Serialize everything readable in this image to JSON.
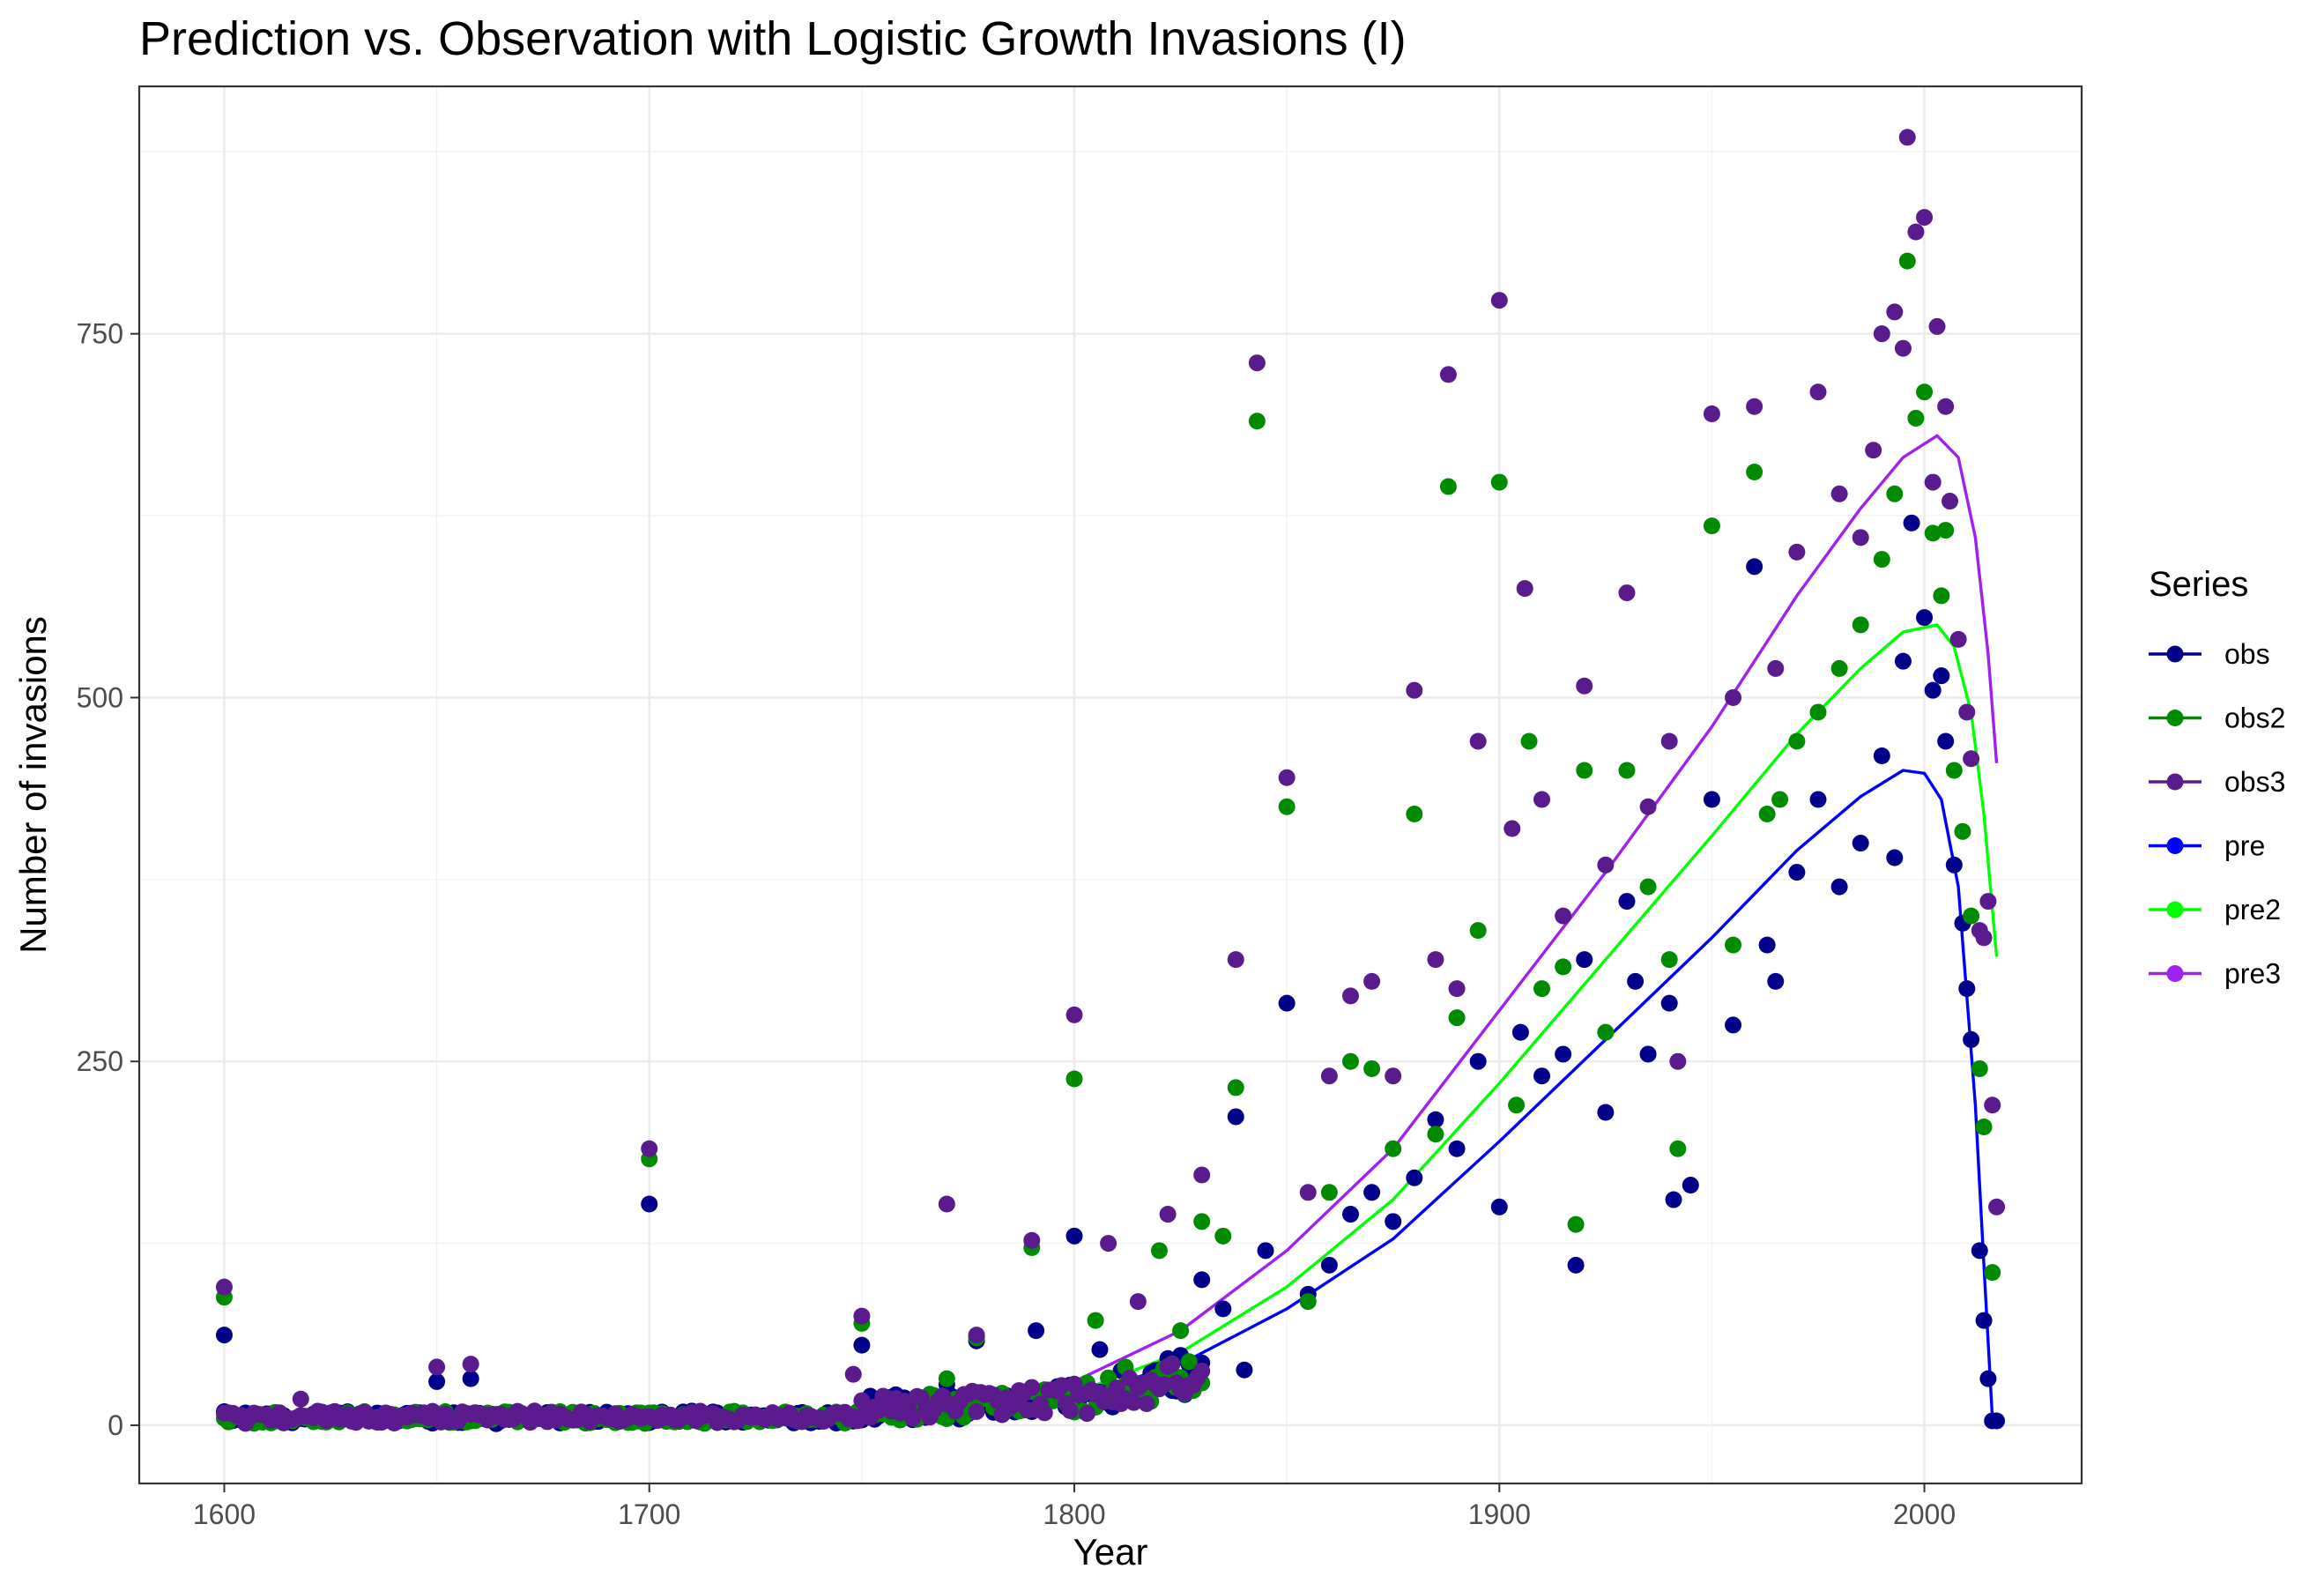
{
  "chart_data": {
    "type": "scatter",
    "title": "Prediction vs. Observation with Logistic Growth Invasions (I)",
    "xlabel": "Year",
    "ylabel": "Number of invasions",
    "xlim": [
      1580,
      2037
    ],
    "ylim": [
      -40,
      920
    ],
    "x_ticks": [
      1600,
      1700,
      1800,
      1900,
      2000
    ],
    "y_ticks": [
      0,
      250,
      500,
      750
    ],
    "x_tick_labels": [
      "1600",
      "1700",
      "1800",
      "1900",
      "2000"
    ],
    "y_tick_labels": [
      "0",
      "250",
      "500",
      "750"
    ],
    "grid": true,
    "legend_position": "right",
    "legend_title": "Series",
    "series": [
      {
        "name": "obs",
        "kind": "points",
        "color": "#00008B",
        "points": [
          [
            1600,
            62
          ],
          [
            1650,
            30
          ],
          [
            1658,
            32
          ],
          [
            1700,
            152
          ],
          [
            1750,
            55
          ],
          [
            1770,
            28
          ],
          [
            1777,
            58
          ],
          [
            1791,
            65
          ],
          [
            1800,
            130
          ],
          [
            1806,
            52
          ],
          [
            1813,
            20
          ],
          [
            1820,
            38
          ],
          [
            1825,
            48
          ],
          [
            1830,
            100
          ],
          [
            1835,
            80
          ],
          [
            1838,
            212
          ],
          [
            1840,
            38
          ],
          [
            1845,
            120
          ],
          [
            1850,
            290
          ],
          [
            1855,
            90
          ],
          [
            1860,
            110
          ],
          [
            1865,
            145
          ],
          [
            1870,
            160
          ],
          [
            1875,
            140
          ],
          [
            1880,
            170
          ],
          [
            1885,
            210
          ],
          [
            1890,
            190
          ],
          [
            1895,
            250
          ],
          [
            1900,
            150
          ],
          [
            1905,
            270
          ],
          [
            1910,
            240
          ],
          [
            1915,
            255
          ],
          [
            1918,
            110
          ],
          [
            1920,
            320
          ],
          [
            1925,
            215
          ],
          [
            1930,
            360
          ],
          [
            1932,
            305
          ],
          [
            1935,
            255
          ],
          [
            1940,
            290
          ],
          [
            1941,
            155
          ],
          [
            1945,
            165
          ],
          [
            1950,
            430
          ],
          [
            1955,
            275
          ],
          [
            1960,
            590
          ],
          [
            1963,
            330
          ],
          [
            1965,
            305
          ],
          [
            1970,
            380
          ],
          [
            1975,
            430
          ],
          [
            1980,
            370
          ],
          [
            1985,
            400
          ],
          [
            1990,
            460
          ],
          [
            1993,
            390
          ],
          [
            1995,
            525
          ],
          [
            1997,
            620
          ],
          [
            2000,
            555
          ],
          [
            2002,
            505
          ],
          [
            2004,
            515
          ],
          [
            2005,
            470
          ],
          [
            2007,
            385
          ],
          [
            2009,
            345
          ],
          [
            2010,
            300
          ],
          [
            2011,
            265
          ],
          [
            2013,
            120
          ],
          [
            2014,
            72
          ],
          [
            2015,
            32
          ],
          [
            2016,
            3
          ],
          [
            2017,
            3
          ]
        ]
      },
      {
        "name": "obs2",
        "kind": "points",
        "color": "#008B00",
        "points": [
          [
            1600,
            88
          ],
          [
            1700,
            183
          ],
          [
            1750,
            70
          ],
          [
            1770,
            32
          ],
          [
            1777,
            60
          ],
          [
            1790,
            122
          ],
          [
            1800,
            238
          ],
          [
            1805,
            72
          ],
          [
            1812,
            40
          ],
          [
            1820,
            120
          ],
          [
            1825,
            65
          ],
          [
            1830,
            140
          ],
          [
            1835,
            130
          ],
          [
            1838,
            232
          ],
          [
            1843,
            690
          ],
          [
            1850,
            425
          ],
          [
            1855,
            85
          ],
          [
            1860,
            160
          ],
          [
            1865,
            250
          ],
          [
            1870,
            245
          ],
          [
            1875,
            190
          ],
          [
            1880,
            420
          ],
          [
            1885,
            200
          ],
          [
            1888,
            645
          ],
          [
            1890,
            280
          ],
          [
            1895,
            340
          ],
          [
            1900,
            648
          ],
          [
            1904,
            220
          ],
          [
            1907,
            470
          ],
          [
            1910,
            300
          ],
          [
            1915,
            315
          ],
          [
            1918,
            138
          ],
          [
            1920,
            450
          ],
          [
            1925,
            270
          ],
          [
            1930,
            450
          ],
          [
            1935,
            370
          ],
          [
            1940,
            320
          ],
          [
            1942,
            190
          ],
          [
            1950,
            618
          ],
          [
            1955,
            330
          ],
          [
            1960,
            655
          ],
          [
            1963,
            420
          ],
          [
            1966,
            430
          ],
          [
            1970,
            470
          ],
          [
            1975,
            490
          ],
          [
            1980,
            520
          ],
          [
            1985,
            550
          ],
          [
            1990,
            595
          ],
          [
            1993,
            640
          ],
          [
            1996,
            800
          ],
          [
            1998,
            692
          ],
          [
            2000,
            710
          ],
          [
            2002,
            613
          ],
          [
            2004,
            570
          ],
          [
            2005,
            615
          ],
          [
            2007,
            450
          ],
          [
            2009,
            408
          ],
          [
            2011,
            350
          ],
          [
            2013,
            245
          ],
          [
            2014,
            205
          ],
          [
            2016,
            105
          ]
        ]
      },
      {
        "name": "obs3",
        "kind": "points",
        "color": "#5B1A8E",
        "points": [
          [
            1600,
            95
          ],
          [
            1618,
            18
          ],
          [
            1650,
            40
          ],
          [
            1658,
            42
          ],
          [
            1700,
            190
          ],
          [
            1748,
            35
          ],
          [
            1750,
            75
          ],
          [
            1770,
            152
          ],
          [
            1777,
            62
          ],
          [
            1790,
            127
          ],
          [
            1800,
            282
          ],
          [
            1808,
            125
          ],
          [
            1815,
            85
          ],
          [
            1822,
            145
          ],
          [
            1830,
            172
          ],
          [
            1838,
            320
          ],
          [
            1843,
            730
          ],
          [
            1850,
            445
          ],
          [
            1855,
            160
          ],
          [
            1860,
            240
          ],
          [
            1865,
            295
          ],
          [
            1870,
            305
          ],
          [
            1875,
            240
          ],
          [
            1880,
            505
          ],
          [
            1885,
            320
          ],
          [
            1888,
            722
          ],
          [
            1890,
            300
          ],
          [
            1895,
            470
          ],
          [
            1900,
            773
          ],
          [
            1903,
            410
          ],
          [
            1906,
            575
          ],
          [
            1910,
            430
          ],
          [
            1915,
            350
          ],
          [
            1920,
            508
          ],
          [
            1925,
            385
          ],
          [
            1930,
            572
          ],
          [
            1935,
            425
          ],
          [
            1940,
            470
          ],
          [
            1942,
            250
          ],
          [
            1950,
            695
          ],
          [
            1955,
            500
          ],
          [
            1960,
            700
          ],
          [
            1965,
            520
          ],
          [
            1970,
            600
          ],
          [
            1975,
            710
          ],
          [
            1980,
            640
          ],
          [
            1985,
            610
          ],
          [
            1988,
            670
          ],
          [
            1990,
            750
          ],
          [
            1993,
            765
          ],
          [
            1995,
            740
          ],
          [
            1996,
            885
          ],
          [
            1998,
            820
          ],
          [
            2000,
            830
          ],
          [
            2002,
            648
          ],
          [
            2003,
            755
          ],
          [
            2005,
            700
          ],
          [
            2006,
            635
          ],
          [
            2008,
            540
          ],
          [
            2010,
            490
          ],
          [
            2011,
            458
          ],
          [
            2013,
            340
          ],
          [
            2014,
            335
          ],
          [
            2015,
            360
          ],
          [
            2016,
            220
          ],
          [
            2017,
            150
          ]
        ]
      },
      {
        "name": "pre",
        "kind": "line",
        "color": "#0000FF",
        "points": [
          [
            1600,
            0
          ],
          [
            1700,
            0
          ],
          [
            1750,
            3
          ],
          [
            1800,
            20
          ],
          [
            1825,
            42
          ],
          [
            1850,
            80
          ],
          [
            1875,
            128
          ],
          [
            1900,
            195
          ],
          [
            1925,
            265
          ],
          [
            1950,
            335
          ],
          [
            1970,
            395
          ],
          [
            1985,
            432
          ],
          [
            1995,
            450
          ],
          [
            2000,
            448
          ],
          [
            2004,
            430
          ],
          [
            2008,
            370
          ],
          [
            2012,
            220
          ],
          [
            2014,
            110
          ],
          [
            2016,
            5
          ]
        ]
      },
      {
        "name": "pre2",
        "kind": "line",
        "color": "#00FF00",
        "points": [
          [
            1600,
            0
          ],
          [
            1700,
            0
          ],
          [
            1750,
            4
          ],
          [
            1800,
            22
          ],
          [
            1825,
            50
          ],
          [
            1850,
            95
          ],
          [
            1875,
            155
          ],
          [
            1900,
            235
          ],
          [
            1925,
            320
          ],
          [
            1950,
            405
          ],
          [
            1970,
            475
          ],
          [
            1985,
            520
          ],
          [
            1995,
            545
          ],
          [
            2003,
            550
          ],
          [
            2007,
            535
          ],
          [
            2011,
            490
          ],
          [
            2014,
            420
          ],
          [
            2017,
            322
          ]
        ]
      },
      {
        "name": "pre3",
        "kind": "line",
        "color": "#A020F0",
        "points": [
          [
            1600,
            0
          ],
          [
            1700,
            0
          ],
          [
            1750,
            5
          ],
          [
            1800,
            30
          ],
          [
            1825,
            65
          ],
          [
            1850,
            120
          ],
          [
            1875,
            190
          ],
          [
            1900,
            285
          ],
          [
            1925,
            380
          ],
          [
            1950,
            480
          ],
          [
            1970,
            570
          ],
          [
            1985,
            630
          ],
          [
            1995,
            665
          ],
          [
            2003,
            680
          ],
          [
            2008,
            665
          ],
          [
            2012,
            610
          ],
          [
            2015,
            530
          ],
          [
            2017,
            455
          ]
        ]
      }
    ]
  }
}
